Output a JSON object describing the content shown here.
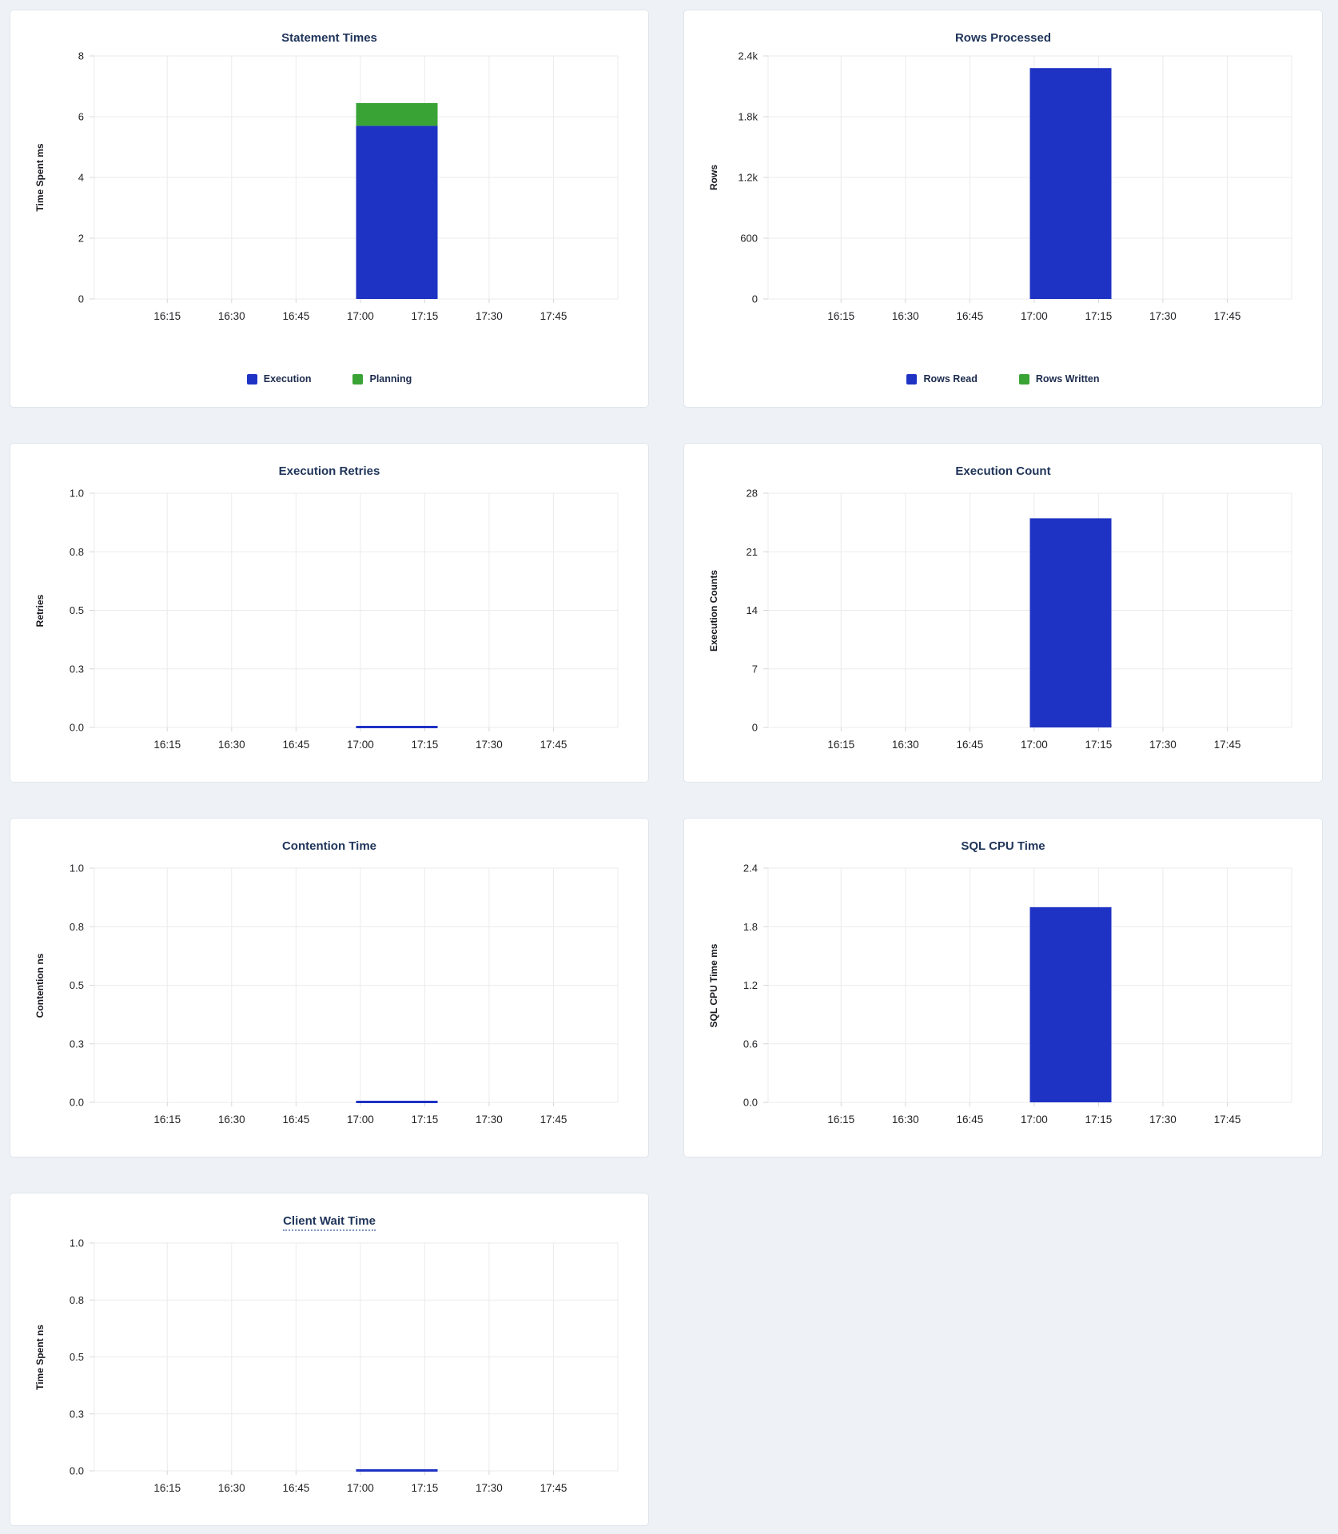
{
  "page_background": "#eef2f6",
  "colors": {
    "bar_blue": "#1e32c3",
    "bar_green": "#3aa336",
    "title_navy": "#1f3459",
    "gridline": "#ebebeb",
    "tick_text": "#1f2023"
  },
  "chart_data": [
    {
      "type": "bar",
      "title": "Statement Times",
      "ylabel": "Time Spent ms",
      "xlabel": "",
      "x_tick_labels": [
        "16:15",
        "16:30",
        "16:45",
        "17:00",
        "17:15",
        "17:30",
        "17:45"
      ],
      "y_tick_labels": [
        "0",
        "2",
        "4",
        "6",
        "8"
      ],
      "y_tick_values": [
        0,
        2,
        4,
        6,
        8
      ],
      "ylim": [
        0,
        8
      ],
      "grid": true,
      "stacked": true,
      "legend": true,
      "legend_position": "bottom",
      "categories": [
        "17:00 - 17:15"
      ],
      "series": [
        {
          "name": "Execution",
          "color": "#1e32c3",
          "values": [
            5.7
          ]
        },
        {
          "name": "Planning",
          "color": "#3aa336",
          "values": [
            0.75
          ]
        }
      ]
    },
    {
      "type": "bar",
      "title": "Rows Processed",
      "ylabel": "Rows",
      "xlabel": "",
      "x_tick_labels": [
        "16:15",
        "16:30",
        "16:45",
        "17:00",
        "17:15",
        "17:30",
        "17:45"
      ],
      "y_tick_labels": [
        "0",
        "600",
        "1.2k",
        "1.8k",
        "2.4k"
      ],
      "y_tick_values": [
        0,
        600,
        1200,
        1800,
        2400
      ],
      "ylim": [
        0,
        2400
      ],
      "grid": true,
      "stacked": true,
      "legend": true,
      "legend_position": "bottom",
      "categories": [
        "17:00 - 17:15"
      ],
      "series": [
        {
          "name": "Rows Read",
          "color": "#1e32c3",
          "values": [
            2280
          ]
        },
        {
          "name": "Rows Written",
          "color": "#3aa336",
          "values": [
            0
          ]
        }
      ]
    },
    {
      "type": "bar",
      "title": "Execution Retries",
      "ylabel": "Retries",
      "xlabel": "",
      "x_tick_labels": [
        "16:15",
        "16:30",
        "16:45",
        "17:00",
        "17:15",
        "17:30",
        "17:45"
      ],
      "y_tick_labels": [
        "0.0",
        "0.3",
        "0.5",
        "0.8",
        "1.0"
      ],
      "y_tick_values": [
        0,
        0.25,
        0.5,
        0.75,
        1
      ],
      "ylim": [
        0,
        1
      ],
      "grid": true,
      "stacked": false,
      "legend": false,
      "categories": [
        "17:00 - 17:15"
      ],
      "series": [
        {
          "name": "Execution Retries",
          "color": "#1e32c3",
          "values": [
            0
          ]
        }
      ]
    },
    {
      "type": "bar",
      "title": "Execution Count",
      "ylabel": "Execution Counts",
      "xlabel": "",
      "x_tick_labels": [
        "16:15",
        "16:30",
        "16:45",
        "17:00",
        "17:15",
        "17:30",
        "17:45"
      ],
      "y_tick_labels": [
        "0",
        "7",
        "14",
        "21",
        "28"
      ],
      "y_tick_values": [
        0,
        7,
        14,
        21,
        28
      ],
      "ylim": [
        0,
        28
      ],
      "grid": true,
      "stacked": false,
      "legend": false,
      "categories": [
        "17:00 - 17:15"
      ],
      "series": [
        {
          "name": "Execution Count",
          "color": "#1e32c3",
          "values": [
            25
          ]
        }
      ]
    },
    {
      "type": "bar",
      "title": "Contention Time",
      "ylabel": "Contention ns",
      "xlabel": "",
      "x_tick_labels": [
        "16:15",
        "16:30",
        "16:45",
        "17:00",
        "17:15",
        "17:30",
        "17:45"
      ],
      "y_tick_labels": [
        "0.0",
        "0.3",
        "0.5",
        "0.8",
        "1.0"
      ],
      "y_tick_values": [
        0,
        0.25,
        0.5,
        0.75,
        1
      ],
      "ylim": [
        0,
        1
      ],
      "grid": true,
      "stacked": false,
      "legend": false,
      "categories": [
        "17:00 - 17:15"
      ],
      "series": [
        {
          "name": "Contention Time",
          "color": "#1e32c3",
          "values": [
            0
          ]
        }
      ]
    },
    {
      "type": "bar",
      "title": "SQL CPU Time",
      "ylabel": "SQL CPU Time ms",
      "xlabel": "",
      "x_tick_labels": [
        "16:15",
        "16:30",
        "16:45",
        "17:00",
        "17:15",
        "17:30",
        "17:45"
      ],
      "y_tick_labels": [
        "0.0",
        "0.6",
        "1.2",
        "1.8",
        "2.4"
      ],
      "y_tick_values": [
        0,
        0.6,
        1.2,
        1.8,
        2.4
      ],
      "ylim": [
        0,
        2.4
      ],
      "grid": true,
      "stacked": false,
      "legend": false,
      "categories": [
        "17:00 - 17:15"
      ],
      "series": [
        {
          "name": "SQL CPU Time",
          "color": "#1e32c3",
          "values": [
            2.0
          ]
        }
      ]
    },
    {
      "type": "bar",
      "title": "Client Wait Time",
      "ylabel": "Time Spent ns",
      "xlabel": "",
      "x_tick_labels": [
        "16:15",
        "16:30",
        "16:45",
        "17:00",
        "17:15",
        "17:30",
        "17:45"
      ],
      "y_tick_labels": [
        "0.0",
        "0.3",
        "0.5",
        "0.8",
        "1.0"
      ],
      "y_tick_values": [
        0,
        0.25,
        0.5,
        0.75,
        1
      ],
      "ylim": [
        0,
        1
      ],
      "grid": true,
      "stacked": false,
      "legend": false,
      "title_underlined": true,
      "categories": [
        "17:00 - 17:15"
      ],
      "series": [
        {
          "name": "Client Wait Time",
          "color": "#1e32c3",
          "values": [
            0
          ]
        }
      ]
    }
  ]
}
